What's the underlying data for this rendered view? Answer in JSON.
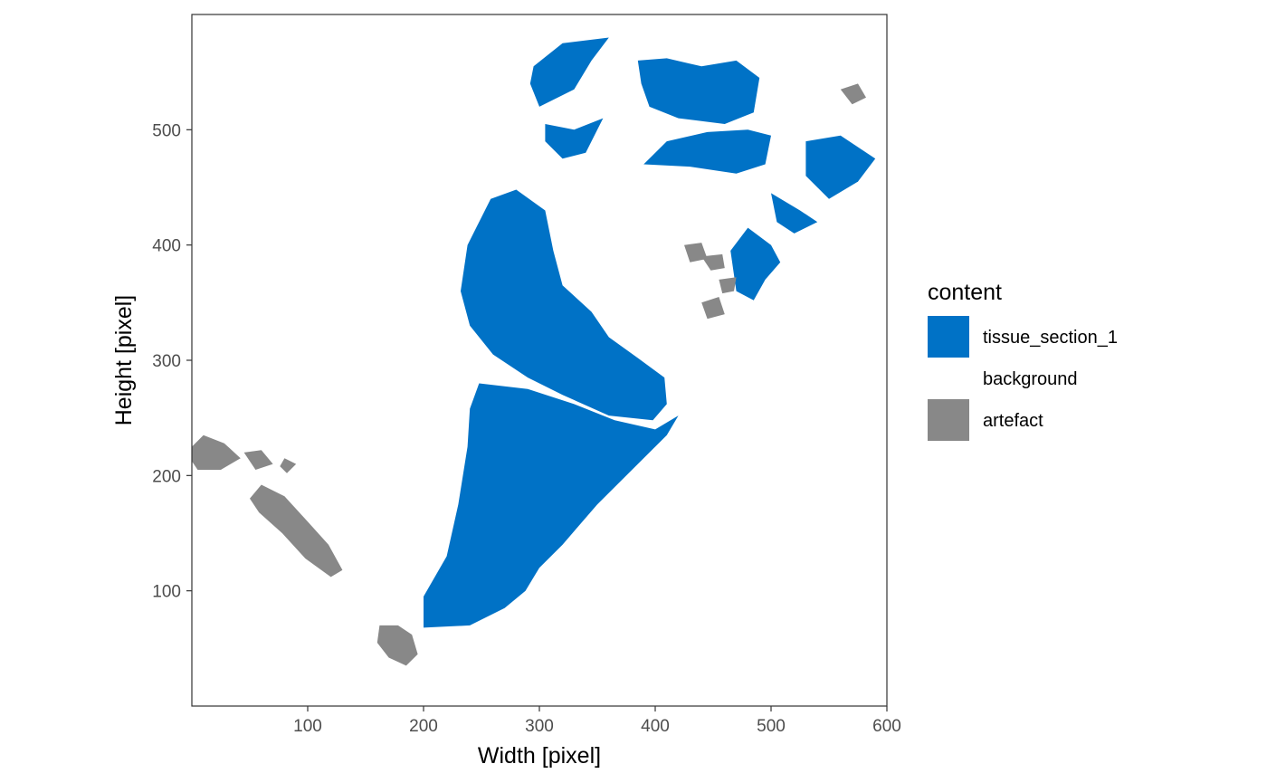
{
  "chart_data": {
    "type": "raster",
    "xlabel": "Width [pixel]",
    "ylabel": "Height [pixel]",
    "xlim": [
      0,
      600
    ],
    "ylim": [
      0,
      600
    ],
    "x_ticks": [
      100,
      200,
      300,
      400,
      500,
      600
    ],
    "y_ticks": [
      100,
      200,
      300,
      400,
      500
    ],
    "grid": false,
    "legend": {
      "title": "content",
      "placement": "right",
      "entries": [
        {
          "label": "tissue_section_1",
          "color": "#0072C6"
        },
        {
          "label": "background",
          "color": "#FFFFFF"
        },
        {
          "label": "artefact",
          "color": "#888888"
        }
      ]
    },
    "regions": [
      {
        "label": "tissue_section_1",
        "color": "#0072C6",
        "polygons": [
          [
            [
              295,
              555
            ],
            [
              320,
              575
            ],
            [
              360,
              580
            ],
            [
              345,
              560
            ],
            [
              330,
              535
            ],
            [
              300,
              520
            ],
            [
              292,
              540
            ]
          ],
          [
            [
              305,
              505
            ],
            [
              330,
              500
            ],
            [
              355,
              510
            ],
            [
              340,
              480
            ],
            [
              320,
              475
            ],
            [
              305,
              490
            ]
          ],
          [
            [
              385,
              560
            ],
            [
              410,
              562
            ],
            [
              440,
              555
            ],
            [
              470,
              560
            ],
            [
              490,
              545
            ],
            [
              485,
              515
            ],
            [
              460,
              505
            ],
            [
              420,
              510
            ],
            [
              395,
              520
            ],
            [
              388,
              540
            ]
          ],
          [
            [
              390,
              470
            ],
            [
              430,
              468
            ],
            [
              470,
              462
            ],
            [
              495,
              470
            ],
            [
              500,
              495
            ],
            [
              480,
              500
            ],
            [
              445,
              498
            ],
            [
              410,
              490
            ]
          ],
          [
            [
              530,
              490
            ],
            [
              560,
              495
            ],
            [
              590,
              475
            ],
            [
              575,
              455
            ],
            [
              550,
              440
            ],
            [
              530,
              460
            ]
          ],
          [
            [
              500,
              445
            ],
            [
              525,
              430
            ],
            [
              540,
              420
            ],
            [
              520,
              410
            ],
            [
              505,
              420
            ]
          ],
          [
            [
              480,
              415
            ],
            [
              500,
              400
            ],
            [
              508,
              385
            ],
            [
              495,
              370
            ],
            [
              485,
              352
            ],
            [
              470,
              360
            ],
            [
              465,
              395
            ]
          ],
          [
            [
              258,
              440
            ],
            [
              280,
              448
            ],
            [
              305,
              430
            ],
            [
              312,
              395
            ],
            [
              320,
              365
            ],
            [
              345,
              342
            ],
            [
              360,
              320
            ],
            [
              385,
              302
            ],
            [
              408,
              285
            ],
            [
              410,
              262
            ],
            [
              398,
              248
            ],
            [
              360,
              252
            ],
            [
              320,
              270
            ],
            [
              290,
              285
            ],
            [
              260,
              305
            ],
            [
              240,
              330
            ],
            [
              232,
              360
            ],
            [
              238,
              400
            ]
          ],
          [
            [
              248,
              280
            ],
            [
              290,
              275
            ],
            [
              330,
              262
            ],
            [
              365,
              248
            ],
            [
              400,
              240
            ],
            [
              420,
              252
            ],
            [
              410,
              235
            ],
            [
              380,
              205
            ],
            [
              350,
              175
            ],
            [
              320,
              140
            ],
            [
              300,
              120
            ],
            [
              288,
              100
            ],
            [
              270,
              85
            ],
            [
              240,
              70
            ],
            [
              200,
              68
            ],
            [
              200,
              95
            ],
            [
              220,
              130
            ],
            [
              230,
              175
            ],
            [
              238,
              225
            ],
            [
              240,
              258
            ]
          ]
        ]
      },
      {
        "label": "artefact",
        "color": "#888888",
        "polygons": [
          [
            [
              -5,
              220
            ],
            [
              10,
              235
            ],
            [
              28,
              228
            ],
            [
              42,
              215
            ],
            [
              25,
              205
            ],
            [
              5,
              205
            ]
          ],
          [
            [
              45,
              220
            ],
            [
              60,
              222
            ],
            [
              70,
              210
            ],
            [
              55,
              205
            ]
          ],
          [
            [
              80,
              215
            ],
            [
              90,
              210
            ],
            [
              82,
              202
            ],
            [
              76,
              208
            ]
          ],
          [
            [
              50,
              180
            ],
            [
              60,
              192
            ],
            [
              80,
              182
            ],
            [
              100,
              160
            ],
            [
              118,
              140
            ],
            [
              130,
              118
            ],
            [
              120,
              112
            ],
            [
              98,
              128
            ],
            [
              78,
              150
            ],
            [
              58,
              168
            ]
          ],
          [
            [
              162,
              70
            ],
            [
              178,
              70
            ],
            [
              190,
              62
            ],
            [
              195,
              45
            ],
            [
              185,
              35
            ],
            [
              170,
              42
            ],
            [
              160,
              55
            ]
          ],
          [
            [
              425,
              400
            ],
            [
              440,
              402
            ],
            [
              445,
              388
            ],
            [
              430,
              385
            ]
          ],
          [
            [
              440,
              390
            ],
            [
              458,
              392
            ],
            [
              460,
              380
            ],
            [
              448,
              378
            ]
          ],
          [
            [
              455,
              370
            ],
            [
              470,
              372
            ],
            [
              468,
              360
            ],
            [
              458,
              358
            ]
          ],
          [
            [
              440,
              350
            ],
            [
              455,
              355
            ],
            [
              460,
              340
            ],
            [
              445,
              336
            ]
          ],
          [
            [
              560,
              535
            ],
            [
              575,
              540
            ],
            [
              582,
              528
            ],
            [
              570,
              522
            ]
          ]
        ]
      }
    ]
  }
}
